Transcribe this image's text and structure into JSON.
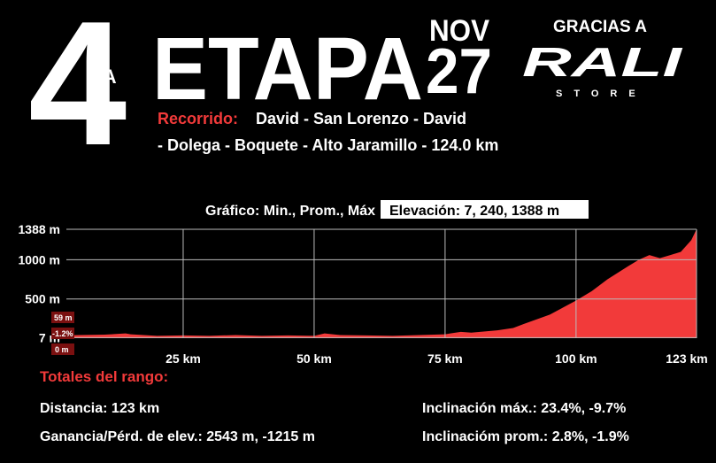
{
  "header": {
    "stage_number": "4",
    "stage_suffix": "TA",
    "title": "ETAPA",
    "month": "NOV",
    "day": "27",
    "thanks": "GRACIAS A",
    "sponsor": "RALI",
    "sponsor_sub": "STORE",
    "route_label": "Recorrido:",
    "route_line1": "David - San Lorenzo - David",
    "route_line2": "- Dolega - Boquete - Alto Jaramillo - 124.0 km"
  },
  "chart_data": {
    "type": "area",
    "subtitle": "Gráfico: Min., Prom., Máx",
    "summary": "Elevación: 7, 240, 1388 m",
    "x": [
      0,
      5,
      10,
      14,
      15,
      20,
      25,
      30,
      35,
      40,
      45,
      50,
      52,
      55,
      60,
      65,
      70,
      75,
      78,
      80,
      85,
      88,
      90,
      95,
      100,
      103,
      106,
      110,
      112,
      114,
      116,
      118,
      120,
      122,
      123
    ],
    "values": [
      30,
      40,
      45,
      60,
      50,
      30,
      35,
      30,
      40,
      30,
      35,
      30,
      60,
      40,
      35,
      30,
      40,
      50,
      80,
      70,
      100,
      130,
      180,
      300,
      480,
      600,
      750,
      920,
      1000,
      1060,
      1020,
      1060,
      1100,
      1250,
      1388
    ],
    "color": "#f23a3a",
    "xlim": [
      0,
      123
    ],
    "ylim": [
      0,
      1388
    ],
    "xticks": [
      {
        "value": 25,
        "label": "25 km"
      },
      {
        "value": 50,
        "label": "50 km"
      },
      {
        "value": 75,
        "label": "75 km"
      },
      {
        "value": 100,
        "label": "100 km"
      },
      {
        "value": 123,
        "label": "123 km"
      }
    ],
    "yticks": [
      {
        "value": 7,
        "label": "7 m"
      },
      {
        "value": 500,
        "label": "500 m"
      },
      {
        "value": 1000,
        "label": "1000 m"
      },
      {
        "value": 1388,
        "label": "1388 m"
      }
    ],
    "grid": true,
    "cursor_labels": [
      "59 m",
      "-1.2%",
      "0 m"
    ]
  },
  "totals": {
    "title": "Totales del rango:",
    "distance": "Distancia: 123 km",
    "gain_loss": "Ganancia/Pérd. de elev.: 2543 m, -1215 m",
    "max_incline": "Inclinación máx.: 23.4%, -9.7%",
    "avg_incline": "Inclinacióm prom.: 2.8%, -1.9%"
  }
}
